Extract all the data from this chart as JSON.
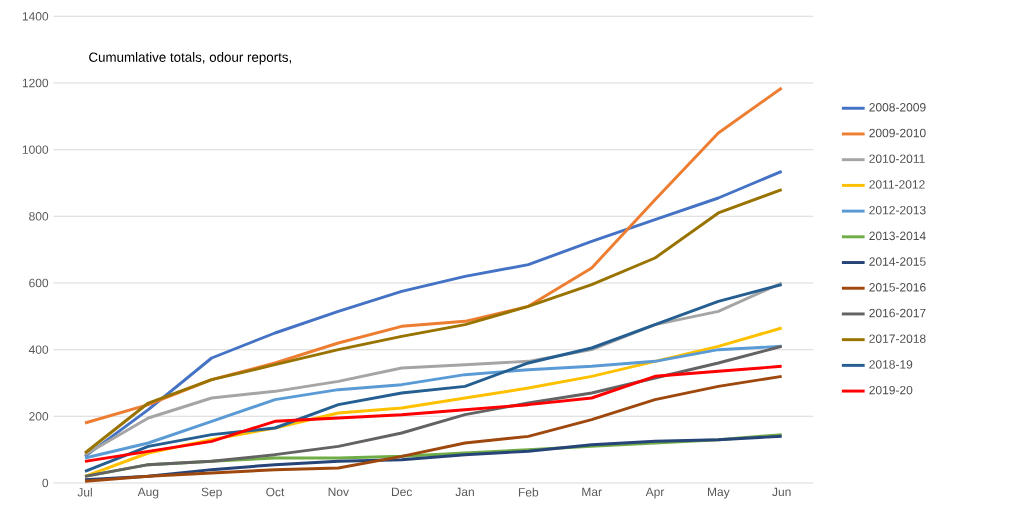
{
  "chart_data": {
    "type": "line",
    "title": "Cumumlative totals, odour reports,",
    "categories": [
      "Jul",
      "Aug",
      "Sep",
      "Oct",
      "Nov",
      "Dec",
      "Jan",
      "Feb",
      "Mar",
      "Apr",
      "May",
      "Jun"
    ],
    "ylim": [
      0,
      1400
    ],
    "yticks": [
      0,
      200,
      400,
      600,
      800,
      1000,
      1200,
      1400
    ],
    "grid": "y",
    "legend": "right",
    "marker": "none",
    "line_style": "solid",
    "series": [
      {
        "name": "2008-2009",
        "color": "#4472c4",
        "values": [
          80,
          220,
          375,
          450,
          515,
          575,
          620,
          655,
          725,
          790,
          855,
          935
        ]
      },
      {
        "name": "2009-2010",
        "color": "#ed7d31",
        "values": [
          180,
          235,
          310,
          360,
          420,
          470,
          485,
          530,
          645,
          850,
          1050,
          1185
        ]
      },
      {
        "name": "2010-2011",
        "color": "#a5a5a5",
        "values": [
          85,
          195,
          255,
          275,
          305,
          345,
          355,
          365,
          400,
          475,
          515,
          600
        ]
      },
      {
        "name": "2011-2012",
        "color": "#ffc000",
        "values": [
          20,
          90,
          130,
          165,
          210,
          225,
          255,
          285,
          320,
          365,
          410,
          465
        ]
      },
      {
        "name": "2012-2013",
        "color": "#5b9bd5",
        "values": [
          75,
          120,
          185,
          250,
          280,
          295,
          325,
          340,
          350,
          365,
          400,
          410
        ]
      },
      {
        "name": "2013-2014",
        "color": "#70ad47",
        "values": [
          20,
          55,
          65,
          75,
          75,
          80,
          90,
          100,
          110,
          120,
          130,
          145
        ]
      },
      {
        "name": "2014-2015",
        "color": "#264478",
        "values": [
          10,
          20,
          40,
          55,
          65,
          70,
          85,
          95,
          115,
          125,
          130,
          140
        ]
      },
      {
        "name": "2015-2016",
        "color": "#9e480e",
        "values": [
          5,
          20,
          30,
          40,
          45,
          80,
          120,
          140,
          190,
          250,
          290,
          320
        ]
      },
      {
        "name": "2016-2017",
        "color": "#636363",
        "values": [
          20,
          55,
          65,
          85,
          110,
          150,
          205,
          240,
          270,
          null,
          360,
          410
        ]
      },
      {
        "name": "2017-2018",
        "color": "#997300",
        "values": [
          90,
          240,
          310,
          355,
          400,
          440,
          475,
          530,
          595,
          675,
          810,
          880
        ]
      },
      {
        "name": "2018-19",
        "color": "#255e91",
        "values": [
          35,
          110,
          145,
          165,
          235,
          270,
          290,
          360,
          405,
          475,
          545,
          595
        ]
      },
      {
        "name": "2019-20",
        "color": "#ff0000",
        "values": [
          65,
          95,
          125,
          185,
          195,
          205,
          220,
          235,
          255,
          320,
          335,
          350
        ]
      }
    ]
  }
}
